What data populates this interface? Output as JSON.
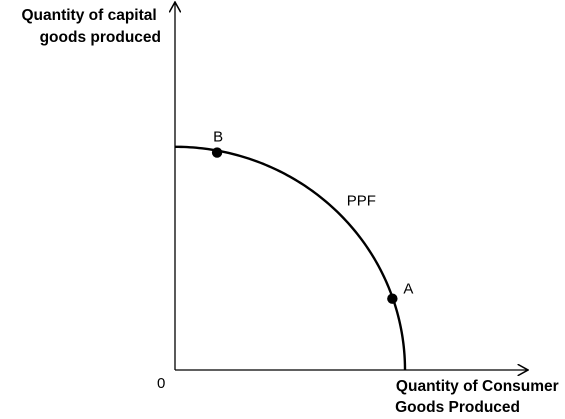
{
  "chart_data": {
    "type": "line",
    "title": "",
    "ylabel": [
      "Quantity of capital",
      "goods produced"
    ],
    "xlabel": [
      "Quantity of Consumer",
      "Goods Produced"
    ],
    "origin_label": "0",
    "grid": false,
    "legend": "none",
    "xlim": [
      0,
      100
    ],
    "ylim": [
      0,
      100
    ],
    "series": [
      {
        "name": "PPF",
        "color": "#000000",
        "shape": "quarter-ellipse",
        "x_intercept": 100,
        "y_intercept": 62
      }
    ],
    "points": [
      {
        "label": "B",
        "x": 18.3,
        "y": 60.4
      },
      {
        "label": "A",
        "x": 94.5,
        "y": 19.8
      }
    ]
  }
}
